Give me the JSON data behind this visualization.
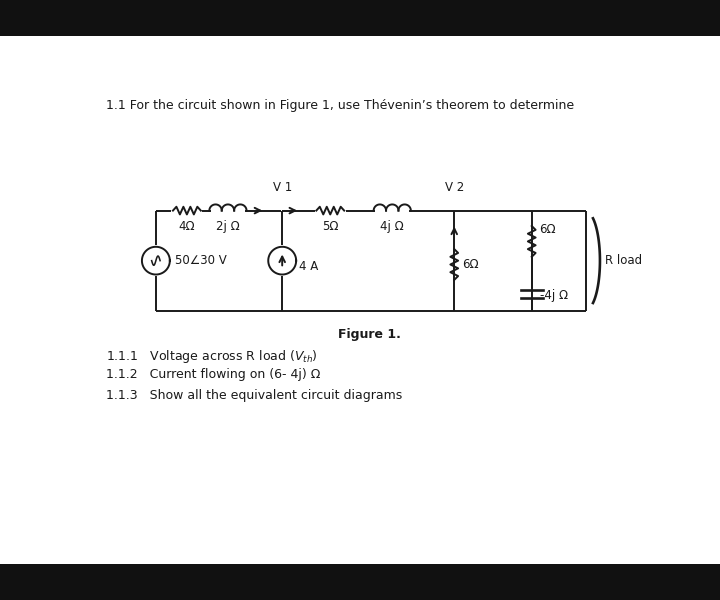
{
  "bg_top_color": "#111111",
  "bg_bot_color": "#111111",
  "panel_color": "#ffffff",
  "line_color": "#1a1a1a",
  "title": "1.1 For the circuit shown in Figure 1, use Thévenin’s theorem to determine",
  "fig_label": "Figure 1.",
  "sub1": "1.1.1   Voltage across R load ($V_{th}$)",
  "sub2": "1.1.2   Current flowing on (6- 4j) Ω",
  "sub3": "1.1.3   Show all the equivalent circuit diagrams"
}
